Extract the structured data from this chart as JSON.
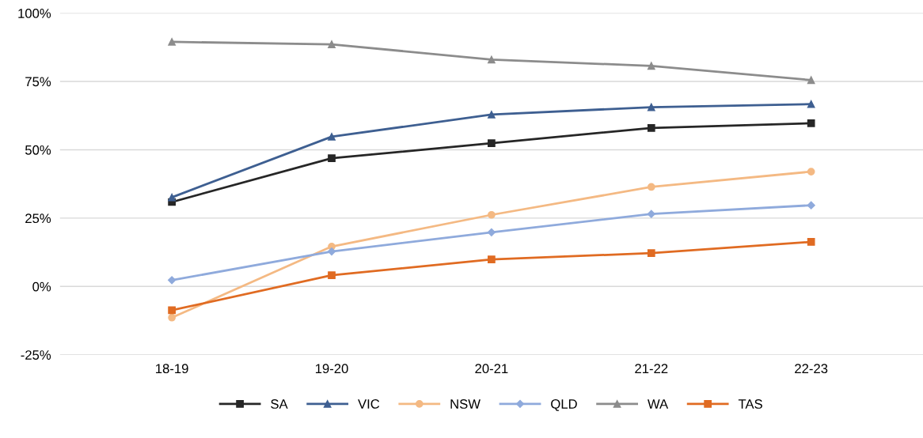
{
  "chart_data": {
    "type": "line",
    "categories": [
      "18-19",
      "19-20",
      "20-21",
      "21-22",
      "22-23"
    ],
    "series": [
      {
        "name": "SA",
        "color": "#262626",
        "marker": "square",
        "values": [
          30.9,
          46.9,
          52.4,
          58.0,
          59.7
        ]
      },
      {
        "name": "VIC",
        "color": "#3e5f91",
        "marker": "triangle",
        "values": [
          32.6,
          54.8,
          62.9,
          65.6,
          66.7
        ]
      },
      {
        "name": "NSW",
        "color": "#f4b983",
        "marker": "circle",
        "values": [
          -11.4,
          14.6,
          26.2,
          36.4,
          42.0
        ]
      },
      {
        "name": "QLD",
        "color": "#8faadc",
        "marker": "diamond",
        "values": [
          2.3,
          12.8,
          19.8,
          26.5,
          29.7
        ]
      },
      {
        "name": "WA",
        "color": "#8c8c8c",
        "marker": "triangle",
        "values": [
          89.5,
          88.6,
          83.0,
          80.7,
          75.5
        ]
      },
      {
        "name": "TAS",
        "color": "#e06b22",
        "marker": "square",
        "values": [
          -8.7,
          4.1,
          9.9,
          12.2,
          16.3
        ]
      }
    ],
    "ylim": [
      -25,
      100
    ],
    "yticks": [
      {
        "value": -25,
        "label": "-25%"
      },
      {
        "value": 0,
        "label": "0%"
      },
      {
        "value": 25,
        "label": "25%"
      },
      {
        "value": 50,
        "label": "50%"
      },
      {
        "value": 75,
        "label": "75%"
      },
      {
        "value": 100,
        "label": "100%"
      }
    ],
    "grid": "y",
    "legend": "bottom",
    "line_style": "solid"
  }
}
